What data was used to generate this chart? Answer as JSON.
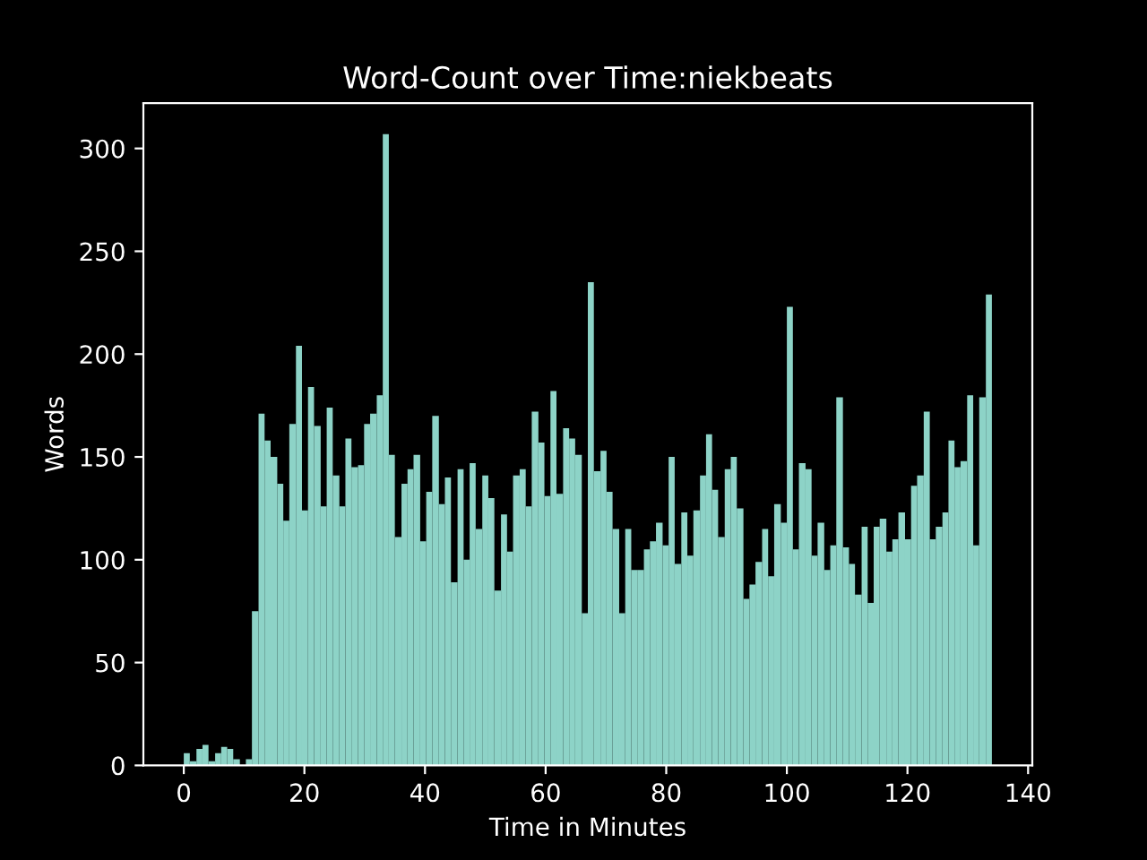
{
  "chart_data": {
    "type": "histogram",
    "title": "Word-Count over Time:niekbeats",
    "xlabel": "Time in Minutes",
    "ylabel": "Words",
    "color": "#8dd3c7",
    "bins": [
      0,
      1.0,
      2.1,
      3.1,
      4.1,
      5.2,
      6.2,
      7.2,
      8.2,
      9.3,
      10.3,
      11.3,
      12.4,
      13.4,
      14.4,
      15.5,
      16.5,
      17.5,
      18.6,
      19.6,
      20.6,
      21.6,
      22.7,
      23.7,
      24.7,
      25.8,
      26.8,
      27.8,
      28.9,
      29.9,
      30.9,
      32.0,
      33.0,
      34.0,
      35.0,
      36.1,
      37.1,
      38.1,
      39.2,
      40.2,
      41.2,
      42.3,
      43.3,
      44.3,
      45.4,
      46.4,
      47.4,
      48.4,
      49.5,
      50.5,
      51.5,
      52.6,
      53.6,
      54.6,
      55.7,
      56.7,
      57.7,
      58.8,
      59.8,
      60.8,
      61.8,
      62.9,
      63.9,
      64.9,
      66.0,
      67.0,
      68.0,
      69.1,
      70.1,
      71.1,
      72.2,
      73.2,
      74.2,
      75.2,
      76.3,
      77.3,
      78.3,
      79.4,
      80.4,
      81.4,
      82.5,
      83.5,
      84.5,
      85.6,
      86.6,
      87.6,
      88.6,
      89.7,
      90.7,
      91.7,
      92.8,
      93.8,
      94.8,
      95.9,
      96.9,
      97.9,
      99.0,
      100.0,
      101.0,
      102.0,
      103.1,
      104.1,
      105.1,
      106.2,
      107.2,
      108.2,
      109.3,
      110.3,
      111.3,
      112.4,
      113.4,
      114.4,
      115.4,
      116.5,
      117.5,
      118.5,
      119.6,
      120.6,
      121.6,
      122.7,
      123.7,
      124.7,
      125.8,
      126.8,
      127.8,
      128.8,
      129.9,
      130.9,
      131.9,
      133.0,
      134.0
    ],
    "values": [
      6,
      2,
      8,
      10,
      2,
      6,
      9,
      8,
      3,
      0,
      3,
      75,
      171,
      158,
      150,
      137,
      119,
      166,
      204,
      124,
      184,
      165,
      126,
      174,
      141,
      126,
      159,
      145,
      146,
      166,
      171,
      180,
      307,
      151,
      111,
      137,
      144,
      151,
      109,
      133,
      170,
      127,
      140,
      89,
      144,
      100,
      147,
      115,
      141,
      130,
      85,
      122,
      104,
      141,
      144,
      126,
      172,
      157,
      131,
      182,
      132,
      164,
      159,
      151,
      74,
      235,
      143,
      153,
      133,
      115,
      74,
      115,
      95,
      95,
      105,
      109,
      118,
      107,
      150,
      98,
      123,
      102,
      124,
      141,
      161,
      134,
      111,
      144,
      150,
      125,
      81,
      88,
      99,
      115,
      92,
      127,
      118,
      223,
      105,
      147,
      144,
      102,
      118,
      95,
      107,
      179,
      106,
      98,
      83,
      116,
      79,
      116,
      120,
      104,
      110,
      123,
      110,
      136,
      141,
      172,
      110,
      116,
      123,
      158,
      145,
      148,
      180,
      107,
      179,
      229
    ],
    "xlim": [
      -6.7,
      140.7
    ],
    "ylim": [
      0,
      322
    ],
    "xticks": [
      0,
      20,
      40,
      60,
      80,
      100,
      120,
      140
    ],
    "yticks": [
      0,
      50,
      100,
      150,
      200,
      250,
      300
    ]
  }
}
